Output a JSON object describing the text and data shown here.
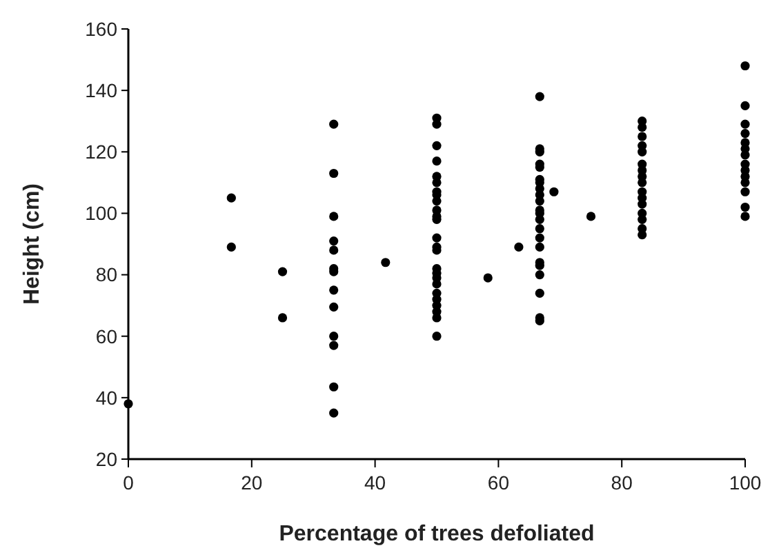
{
  "chart_data": {
    "type": "scatter",
    "xlabel": "Percentage of trees defoliated",
    "ylabel": "Height (cm)",
    "xlim": [
      0,
      100
    ],
    "xticks": [
      0,
      20,
      40,
      60,
      80,
      100
    ],
    "ylim": [
      20,
      160
    ],
    "yticks": [
      20,
      40,
      60,
      80,
      100,
      120,
      140,
      160
    ],
    "grid": false,
    "marker": "circle",
    "series": [
      {
        "color": "#000000",
        "x": [
          0,
          16.7,
          16.7,
          25,
          25,
          33.3,
          33.3,
          33.3,
          33.3,
          33.3,
          33.3,
          33.3,
          33.3,
          33.3,
          33.3,
          33.3,
          33.3,
          33.3,
          41.7,
          50,
          50,
          50,
          50,
          50,
          50,
          50,
          50,
          50,
          50,
          50,
          50,
          50,
          50,
          50,
          50,
          50,
          50,
          50,
          50,
          50,
          50,
          50,
          50,
          50,
          58.3,
          63.3,
          66.7,
          66.7,
          66.7,
          66.7,
          66.7,
          66.7,
          66.7,
          66.7,
          66.7,
          66.7,
          66.7,
          66.7,
          66.7,
          66.7,
          66.7,
          66.7,
          66.7,
          66.7,
          66.7,
          66.7,
          66.7,
          66.7,
          69,
          75,
          83.3,
          83.3,
          83.3,
          83.3,
          83.3,
          83.3,
          83.3,
          83.3,
          83.3,
          83.3,
          83.3,
          83.3,
          83.3,
          83.3,
          83.3,
          83.3,
          100,
          100,
          100,
          100,
          100,
          100,
          100,
          100,
          100,
          100,
          100,
          100,
          100,
          100
        ],
        "values": [
          38,
          105,
          89,
          81,
          66,
          129,
          113,
          99,
          91,
          88,
          82,
          81,
          75,
          69.5,
          60,
          57,
          43.5,
          35,
          84,
          131,
          129,
          122,
          117,
          112,
          110,
          107,
          106,
          104,
          101,
          99,
          98,
          92,
          89,
          88,
          82,
          80.5,
          79,
          77,
          74,
          72,
          70,
          68,
          66,
          60,
          79,
          89,
          138,
          121,
          120,
          116,
          115,
          111,
          110,
          108,
          106,
          104,
          101,
          100,
          98,
          95,
          92,
          89,
          84,
          83,
          80,
          74,
          66,
          65,
          107,
          99,
          130,
          128,
          125,
          122,
          120,
          116,
          114,
          112,
          110,
          107,
          105,
          103,
          100,
          98,
          95,
          93,
          148,
          135,
          129,
          126,
          123,
          121,
          119,
          116,
          114,
          112,
          110,
          107,
          102,
          99
        ]
      }
    ]
  }
}
